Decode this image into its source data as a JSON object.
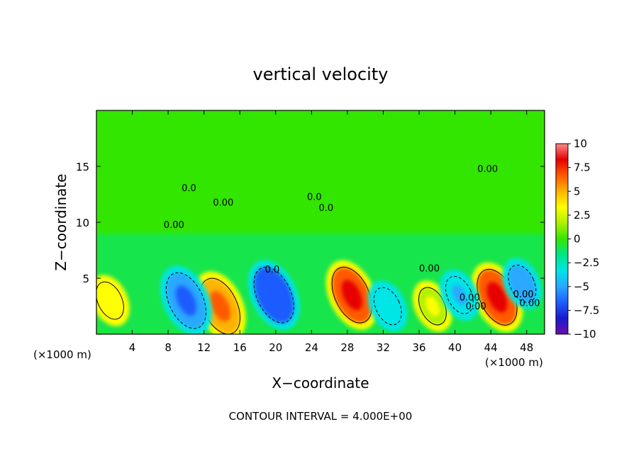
{
  "chart_data": {
    "type": "heatmap",
    "title": "vertical velocity",
    "xlabel": "X−coordinate",
    "ylabel": "Z−coordinate",
    "x_unit_left": "(×1000 m)",
    "x_unit_right": "(×1000 m)",
    "footer": "CONTOUR INTERVAL = 4.000E+00",
    "xlim": [
      0,
      50
    ],
    "ylim": [
      0,
      20
    ],
    "x_ticks": [
      4,
      8,
      12,
      16,
      20,
      24,
      28,
      32,
      36,
      40,
      44,
      48
    ],
    "x_tick_labels": [
      "4",
      "8",
      "12",
      "16",
      "20",
      "24",
      "28",
      "32",
      "36",
      "40",
      "44",
      "48"
    ],
    "y_ticks": [
      5,
      10,
      15
    ],
    "y_tick_labels": [
      "5",
      "10",
      "15"
    ],
    "colorbar": {
      "ticks": [
        10,
        7.5,
        5,
        2.5,
        0,
        -2.5,
        -5,
        -7.5,
        -10
      ],
      "tick_labels": [
        "10",
        "7.5",
        "5",
        "2.5",
        "0",
        "−2.5",
        "−5",
        "−7.5",
        "−10"
      ],
      "range": [
        -10,
        10
      ],
      "colors": [
        "#6a0dad",
        "#1a1acc",
        "#1f5cff",
        "#29a8ff",
        "#00e5e5",
        "#00e58a",
        "#33e600",
        "#aef000",
        "#ffff00",
        "#ffb300",
        "#ff5a00",
        "#e60000",
        "#ff8a8a"
      ]
    },
    "contour_labels": [
      "0.0",
      "0.00",
      "0.00",
      "0.0",
      "0.0",
      "0.0",
      "0.00",
      "0.00",
      "0.00",
      "0.00",
      "0.00",
      "0.00"
    ],
    "features": [
      {
        "x": 13.8,
        "z": 2.5,
        "value": 6.5
      },
      {
        "x": 28.5,
        "z": 3.5,
        "value": 8.0
      },
      {
        "x": 44.7,
        "z": 3.3,
        "value": 8.5
      },
      {
        "x": 1.5,
        "z": 3.0,
        "value": 3.5
      },
      {
        "x": 37.5,
        "z": 2.5,
        "value": 3.0
      },
      {
        "x": 10.0,
        "z": 3.0,
        "value": -6.0
      },
      {
        "x": 19.8,
        "z": 3.5,
        "value": -7.5
      },
      {
        "x": 40.5,
        "z": 3.5,
        "value": -5.0
      },
      {
        "x": 47.5,
        "z": 4.5,
        "value": -5.5
      },
      {
        "x": 32.5,
        "z": 2.5,
        "value": -4.0
      }
    ]
  }
}
